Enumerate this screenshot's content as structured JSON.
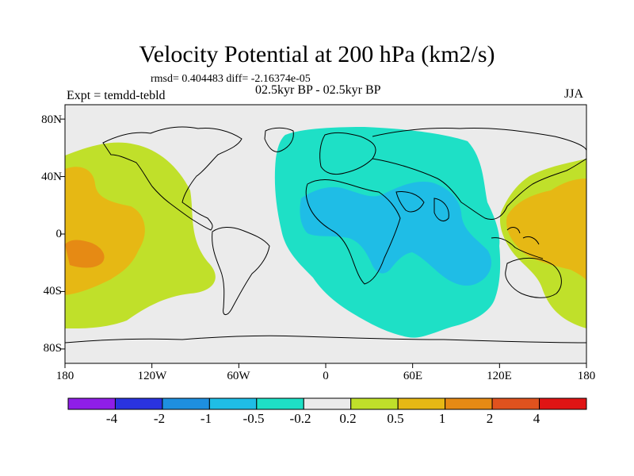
{
  "title": "Velocity Potential at 200 hPa (km2/s)",
  "stats": "rmsd= 0.404483  diff= -2.16374e-05",
  "experiment": "Expt = temdd-tebld",
  "period": "02.5kyr BP - 02.5kyr BP",
  "season": "JJA",
  "colors": {
    "ocean_neutral": "#ebebeb",
    "coast": "#000000",
    "bins": [
      "#8f1ee8",
      "#2a33e0",
      "#1e8fe0",
      "#1fbde6",
      "#1ee0c6",
      "#ebebeb",
      "#c0e02a",
      "#e6b814",
      "#e68a14",
      "#e0521e",
      "#e01414"
    ]
  },
  "map": {
    "latitude_labels": [
      "80N",
      "40N",
      "0",
      "40S",
      "80S"
    ],
    "longitude_labels": [
      "180",
      "120W",
      "60W",
      "0",
      "60E",
      "120E",
      "180"
    ],
    "latitudes": [
      80,
      40,
      0,
      -40,
      -80
    ],
    "longitudes": [
      -180,
      -120,
      -60,
      0,
      60,
      120,
      180
    ],
    "lon_range": [
      -180,
      180
    ],
    "lat_range": [
      -90,
      90
    ]
  },
  "colorbar": {
    "labels": [
      "-4",
      "-2",
      "-1",
      "-0.5",
      "-0.2",
      "0.2",
      "0.5",
      "1",
      "2",
      "4"
    ]
  }
}
